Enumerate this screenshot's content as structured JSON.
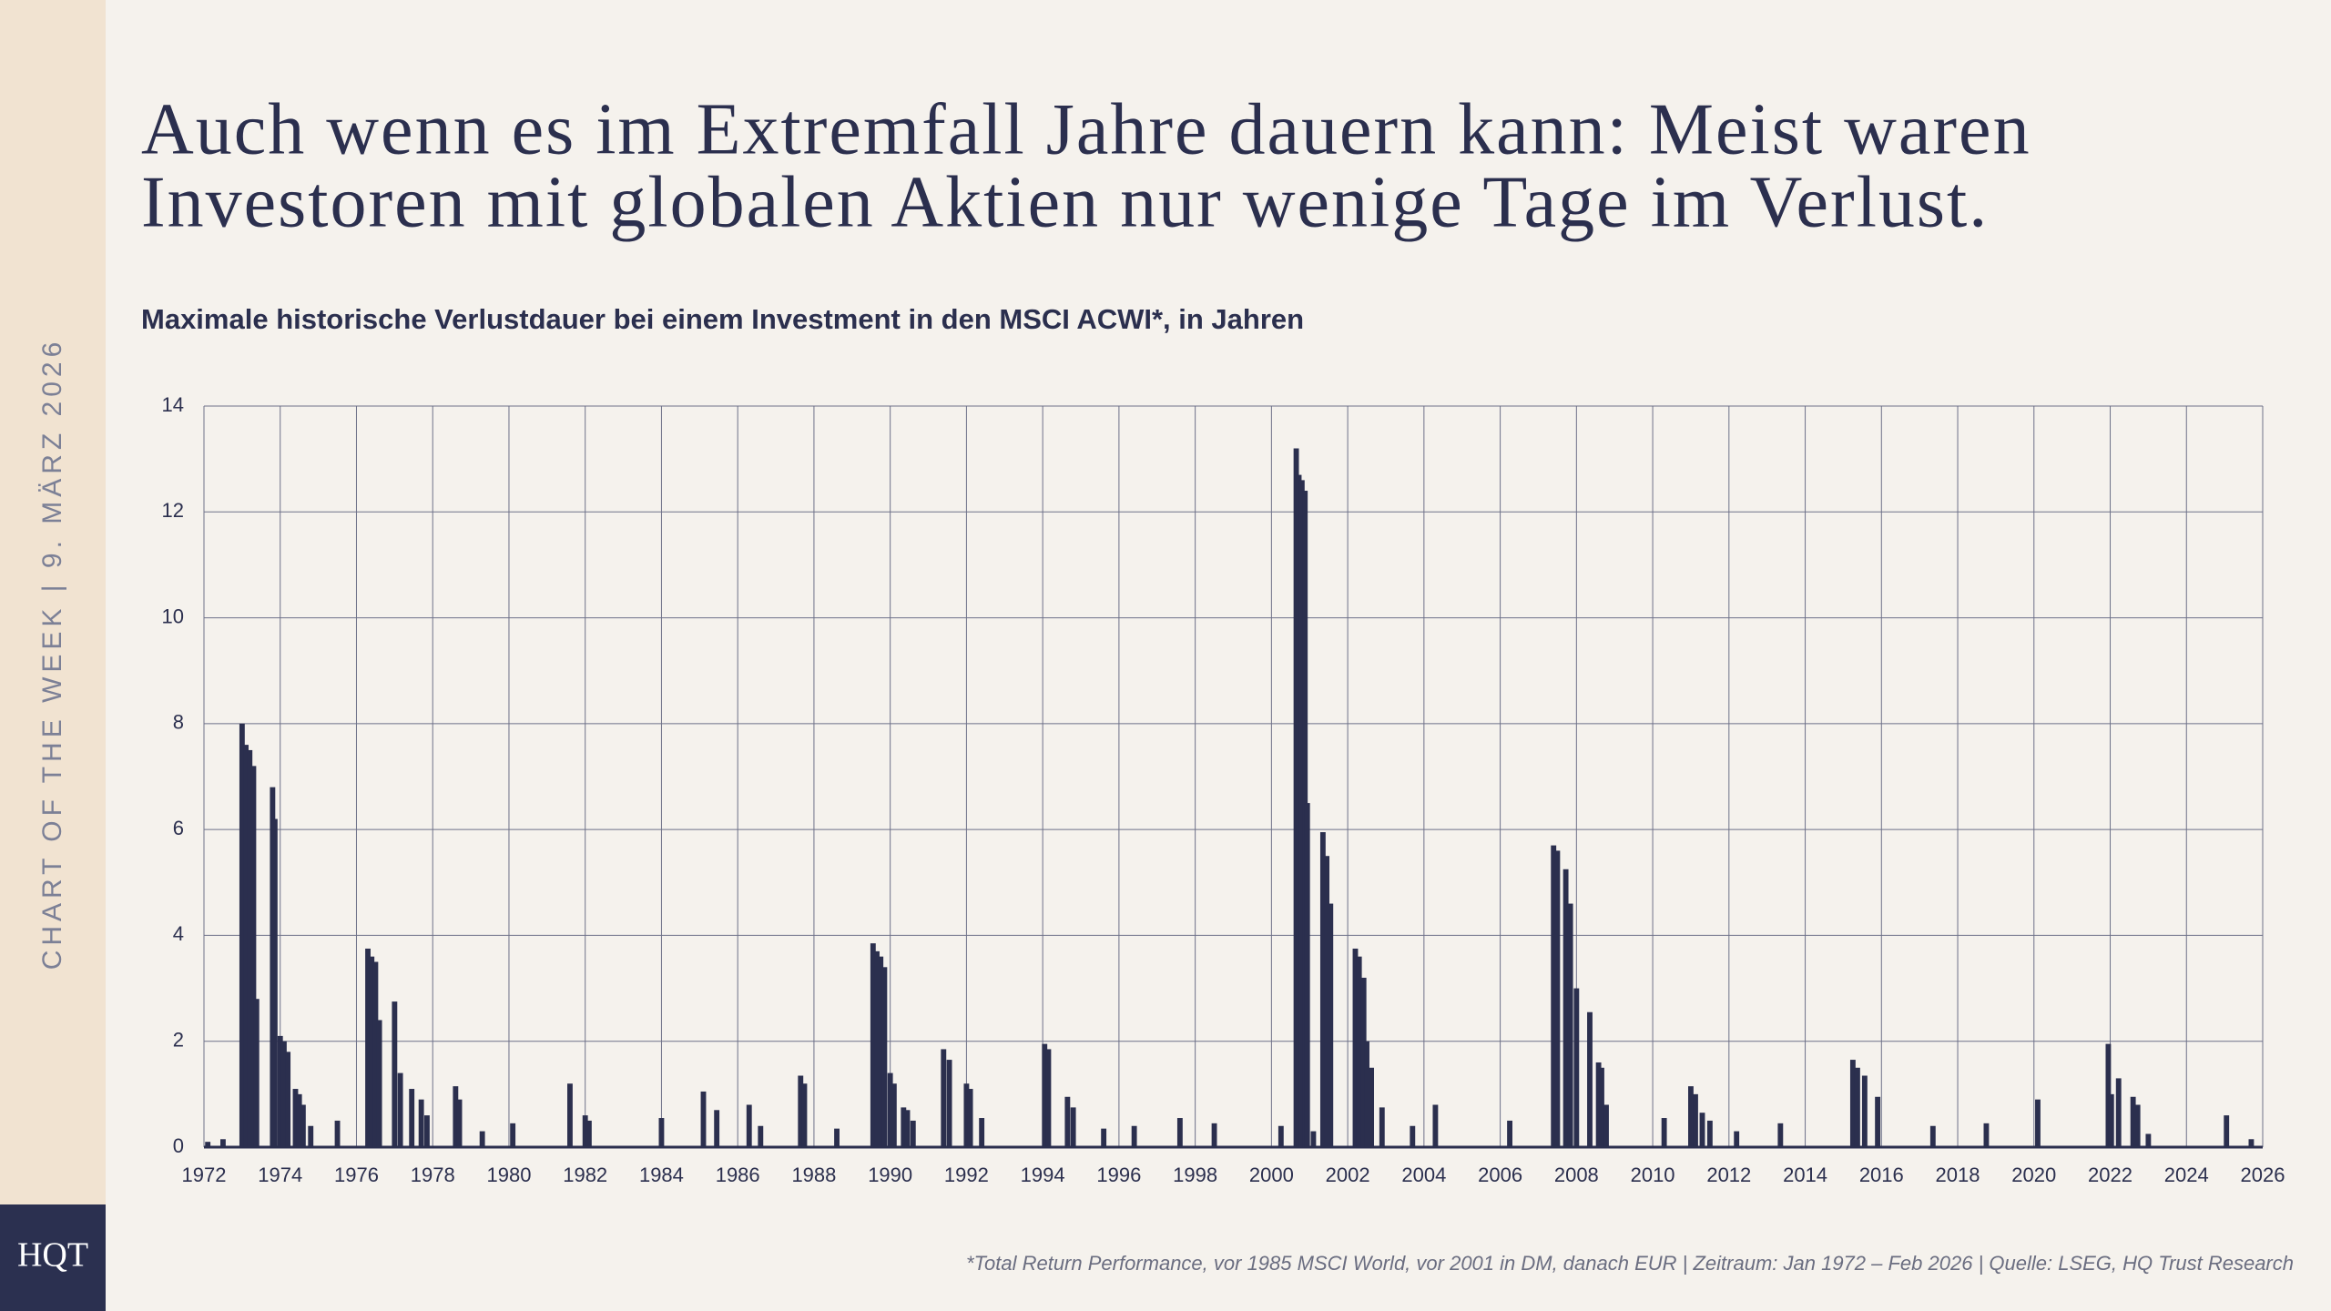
{
  "chart_data": {
    "type": "bar",
    "title": [
      "Auch wenn es im Extremfall Jahre dauern kann: Meist waren",
      "Investoren mit globalen Aktien nur wenige Tage im Verlust."
    ],
    "subtitle": "Maximale historische Verlustdauer bei einem Investment in den MSCI ACWI*, in Jahren",
    "x": [
      1972.1,
      1972.5,
      1973.0,
      1973.1,
      1973.2,
      1973.3,
      1973.38,
      1973.8,
      1973.86,
      1974.0,
      1974.1,
      1974.2,
      1974.4,
      1974.5,
      1974.6,
      1974.8,
      1975.5,
      1976.3,
      1976.4,
      1976.5,
      1976.6,
      1977.0,
      1977.15,
      1977.45,
      1977.7,
      1977.85,
      1978.6,
      1978.7,
      1979.3,
      1980.1,
      1981.6,
      1982.0,
      1982.1,
      1984.0,
      1985.1,
      1985.45,
      1986.3,
      1986.6,
      1987.65,
      1987.75,
      1988.6,
      1989.55,
      1989.65,
      1989.75,
      1989.85,
      1990.0,
      1990.1,
      1990.35,
      1990.45,
      1990.6,
      1991.4,
      1991.55,
      1992.0,
      1992.1,
      1992.4,
      1994.05,
      1994.15,
      1994.65,
      1994.8,
      1995.6,
      1996.4,
      1997.6,
      1998.5,
      2000.25,
      2000.65,
      2000.72,
      2000.8,
      2000.88,
      2000.94,
      2001.1,
      2001.35,
      2001.45,
      2001.55,
      2002.2,
      2002.3,
      2002.42,
      2002.5,
      2002.62,
      2002.9,
      2003.7,
      2004.3,
      2006.25,
      2007.4,
      2007.5,
      2007.72,
      2007.84,
      2008.0,
      2008.35,
      2008.58,
      2008.66,
      2008.78,
      2010.3,
      2011.0,
      2011.12,
      2011.3,
      2011.5,
      2012.2,
      2013.35,
      2015.25,
      2015.37,
      2015.56,
      2015.9,
      2017.35,
      2018.75,
      2020.1,
      2021.95,
      2022.03,
      2022.22,
      2022.6,
      2022.72,
      2023.0,
      2025.05,
      2025.7
    ],
    "values": [
      0.1,
      0.15,
      8.0,
      7.6,
      7.5,
      7.2,
      2.8,
      6.8,
      6.2,
      2.1,
      2.0,
      1.8,
      1.1,
      1.0,
      0.8,
      0.4,
      0.5,
      3.75,
      3.6,
      3.5,
      2.4,
      2.75,
      1.4,
      1.1,
      0.9,
      0.6,
      1.15,
      0.9,
      0.3,
      0.45,
      1.2,
      0.6,
      0.5,
      0.55,
      1.05,
      0.7,
      0.8,
      0.4,
      1.35,
      1.2,
      0.35,
      3.85,
      3.7,
      3.6,
      3.4,
      1.4,
      1.2,
      0.75,
      0.7,
      0.5,
      1.85,
      1.65,
      1.2,
      1.1,
      0.55,
      1.95,
      1.85,
      0.95,
      0.75,
      0.35,
      0.4,
      0.55,
      0.45,
      0.4,
      13.2,
      12.7,
      12.6,
      12.4,
      6.5,
      0.3,
      5.95,
      5.5,
      4.6,
      3.75,
      3.6,
      3.2,
      2.0,
      1.5,
      0.75,
      0.4,
      0.8,
      0.5,
      5.7,
      5.6,
      5.25,
      4.6,
      3.0,
      2.55,
      1.6,
      1.5,
      0.8,
      0.55,
      1.15,
      1.0,
      0.65,
      0.5,
      0.3,
      0.45,
      1.65,
      1.5,
      1.35,
      0.95,
      0.4,
      0.45,
      0.9,
      1.95,
      1.0,
      1.3,
      0.95,
      0.8,
      0.25,
      0.6,
      0.15
    ],
    "color": "#2b2f4e",
    "xlim": [
      1972,
      2026
    ],
    "xticks": [
      1972,
      1974,
      1976,
      1978,
      1980,
      1982,
      1984,
      1986,
      1988,
      1990,
      1992,
      1994,
      1996,
      1998,
      2000,
      2002,
      2004,
      2006,
      2008,
      2010,
      2012,
      2014,
      2016,
      2018,
      2020,
      2022,
      2024,
      2026
    ],
    "ylim": [
      0,
      14
    ],
    "yticks": [
      0,
      2,
      4,
      6,
      8,
      10,
      12,
      14
    ],
    "grid": true
  },
  "sidebar_label": "CHART OF THE WEEK | 9. MÄRZ 2026",
  "logo": "HQT",
  "footnote": "*Total Return Performance, vor 1985 MSCI World, vor 2001 in DM, danach EUR | Zeitraum: Jan 1972 – Feb 2026 | Quelle: LSEG, HQ Trust Research"
}
